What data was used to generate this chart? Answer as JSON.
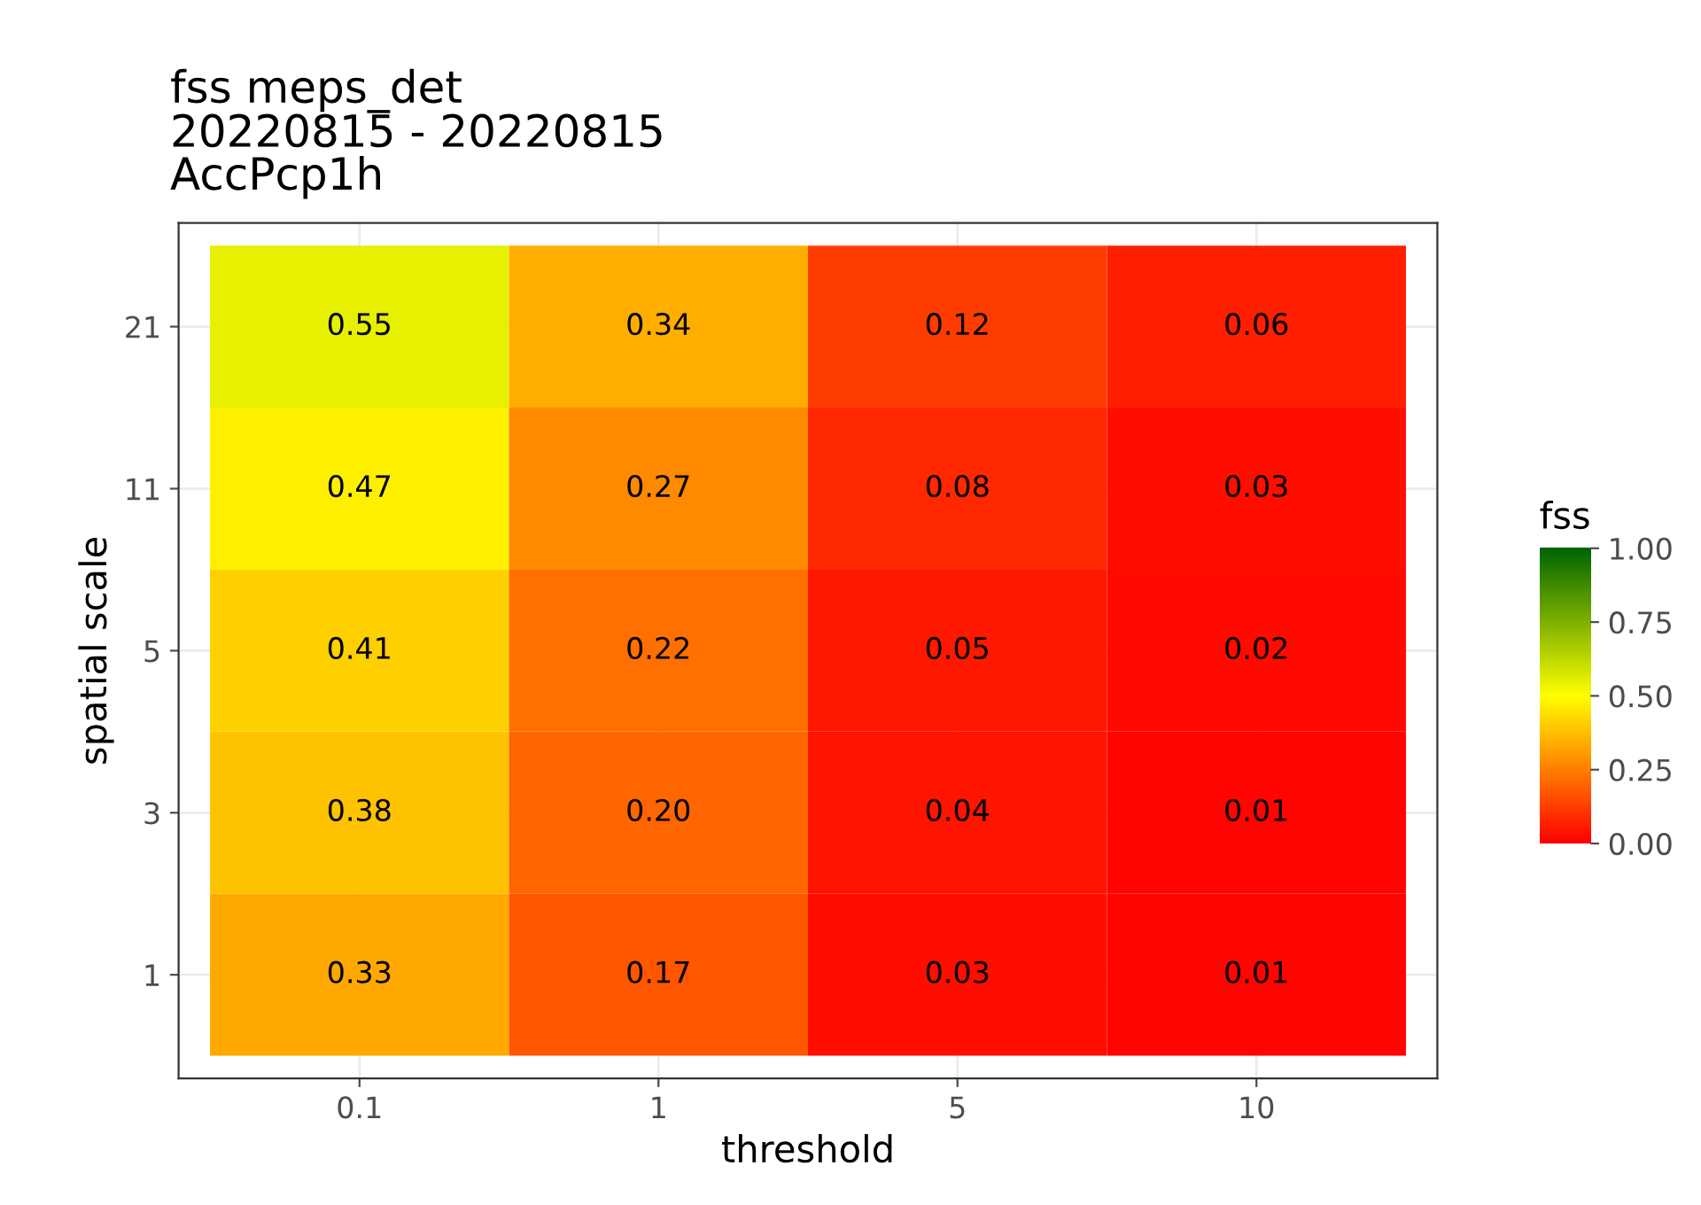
{
  "chart_data": {
    "type": "heatmap",
    "title": "fss meps_det\n20220815 - 20220815\nAccPcp1h",
    "xlabel": "threshold",
    "ylabel": "spatial scale",
    "clabel": "fss",
    "categories": [
      "0.1",
      "1",
      "5",
      "10"
    ],
    "y_categories": [
      "21",
      "11",
      "5",
      "3",
      "1"
    ],
    "cells": [
      [
        0.55,
        0.34,
        0.12,
        0.06
      ],
      [
        0.47,
        0.27,
        0.08,
        0.03
      ],
      [
        0.41,
        0.22,
        0.05,
        0.02
      ],
      [
        0.38,
        0.2,
        0.04,
        0.01
      ],
      [
        0.33,
        0.17,
        0.03,
        0.01
      ]
    ],
    "cell_labels": [
      [
        "0.55",
        "0.34",
        "0.12",
        "0.06"
      ],
      [
        "0.47",
        "0.27",
        "0.08",
        "0.03"
      ],
      [
        "0.41",
        "0.22",
        "0.05",
        "0.02"
      ],
      [
        "0.38",
        "0.20",
        "0.04",
        "0.01"
      ],
      [
        "0.33",
        "0.17",
        "0.03",
        "0.01"
      ]
    ],
    "clim": [
      0,
      1
    ],
    "cticks": [
      {
        "value": 0,
        "label": "0.00"
      },
      {
        "value": 0.25,
        "label": "0.25"
      },
      {
        "value": 0.5,
        "label": "0.50"
      },
      {
        "value": 0.75,
        "label": "0.75"
      },
      {
        "value": 1,
        "label": "1.00"
      }
    ],
    "grid": true
  }
}
